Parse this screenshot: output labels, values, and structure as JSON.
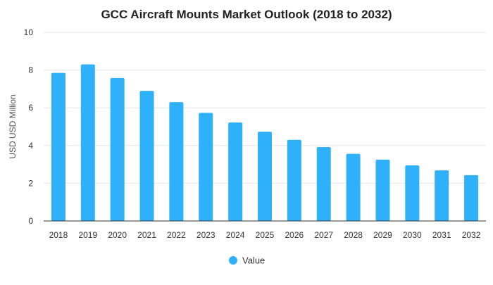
{
  "chart_data": {
    "type": "bar",
    "title": "GCC Aircraft Mounts Market Outlook (2018 to 2032)",
    "xlabel": "",
    "ylabel": "USD USD Million",
    "ylim": [
      0,
      10
    ],
    "yticks": [
      0,
      2,
      4,
      6,
      8,
      10
    ],
    "grid": true,
    "legend_position": "bottom-center",
    "categories": [
      "2018",
      "2019",
      "2020",
      "2021",
      "2022",
      "2023",
      "2024",
      "2025",
      "2026",
      "2027",
      "2028",
      "2029",
      "2030",
      "2031",
      "2032"
    ],
    "series": [
      {
        "name": "Value",
        "color": "#2EB0FA",
        "values": [
          7.85,
          8.3,
          7.58,
          6.9,
          6.3,
          5.73,
          5.22,
          4.73,
          4.3,
          3.92,
          3.56,
          3.25,
          2.95,
          2.68,
          2.43
        ]
      }
    ]
  }
}
